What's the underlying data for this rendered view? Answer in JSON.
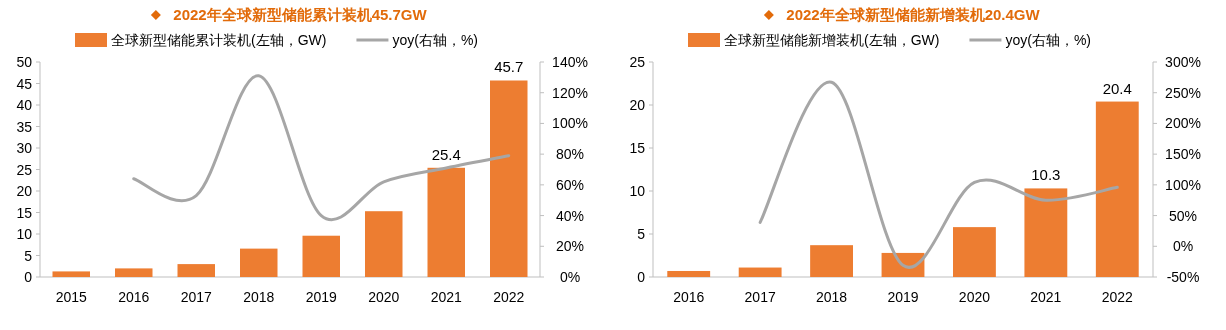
{
  "chart_data": [
    {
      "type": "bar",
      "title": "2022年全球新型储能累计装机45.7GW",
      "categories": [
        "2015",
        "2016",
        "2017",
        "2018",
        "2019",
        "2020",
        "2021",
        "2022"
      ],
      "series": [
        {
          "name": "全球新型储能累计装机(左轴，GW)",
          "color": "#ed7d31",
          "values": [
            1.3,
            2.0,
            3.0,
            6.6,
            9.6,
            15.3,
            25.4,
            45.7
          ],
          "value_labels": [
            null,
            null,
            null,
            null,
            null,
            null,
            "25.4",
            "45.7"
          ]
        },
        {
          "name": "yoy(右轴，%)",
          "type": "line",
          "axis": "y2",
          "color": "#a6a6a6",
          "values": [
            null,
            64,
            53,
            131,
            40,
            62,
            71,
            79
          ]
        }
      ],
      "ylim": [
        0,
        50
      ],
      "yticks": [
        0,
        5,
        10,
        15,
        20,
        25,
        30,
        35,
        40,
        45,
        50
      ],
      "y2lim": [
        0,
        140
      ],
      "y2ticks": [
        {
          "value": 0,
          "label": "0%"
        },
        {
          "value": 20,
          "label": "20%"
        },
        {
          "value": 40,
          "label": "40%"
        },
        {
          "value": 60,
          "label": "60%"
        },
        {
          "value": 80,
          "label": "80%"
        },
        {
          "value": 100,
          "label": "100%"
        },
        {
          "value": 120,
          "label": "120%"
        },
        {
          "value": 140,
          "label": "140%"
        }
      ],
      "legend": "top",
      "grid": false
    },
    {
      "type": "bar",
      "title": "2022年全球新型储能新增装机20.4GW",
      "categories": [
        "2016",
        "2017",
        "2018",
        "2019",
        "2020",
        "2021",
        "2022"
      ],
      "series": [
        {
          "name": "全球新型储能新增装机(左轴，GW)",
          "color": "#ed7d31",
          "values": [
            0.7,
            1.1,
            3.7,
            2.8,
            5.8,
            10.3,
            20.4
          ],
          "value_labels": [
            null,
            null,
            null,
            null,
            null,
            "10.3",
            "20.4"
          ]
        },
        {
          "name": "yoy(右轴，%)",
          "type": "line",
          "axis": "y2",
          "color": "#a6a6a6",
          "values": [
            null,
            39,
            267,
            -31,
            104,
            75,
            96
          ]
        }
      ],
      "ylim": [
        0,
        25
      ],
      "yticks": [
        0,
        5,
        10,
        15,
        20,
        25
      ],
      "y2lim": [
        -50,
        300
      ],
      "y2ticks": [
        {
          "value": -50,
          "label": "-50%"
        },
        {
          "value": 0,
          "label": "0%"
        },
        {
          "value": 50,
          "label": "50%"
        },
        {
          "value": 100,
          "label": "100%"
        },
        {
          "value": 150,
          "label": "150%"
        },
        {
          "value": 200,
          "label": "200%"
        },
        {
          "value": 250,
          "label": "250%"
        },
        {
          "value": 300,
          "label": "300%"
        }
      ],
      "legend": "top",
      "grid": false
    }
  ]
}
